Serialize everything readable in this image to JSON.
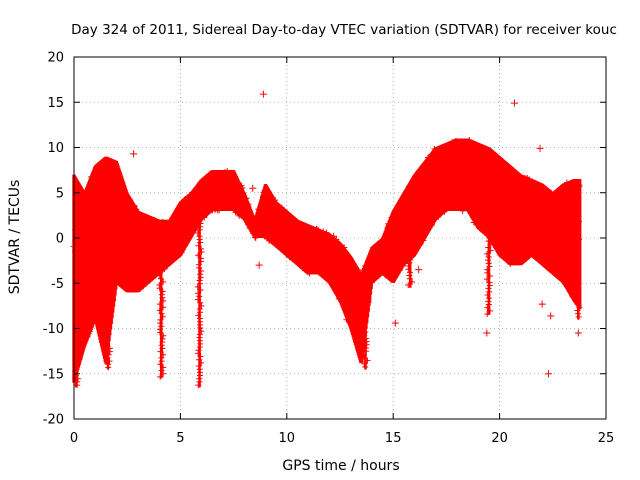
{
  "chart_data": {
    "type": "scatter",
    "title": "Day 324 of 2011, Sidereal Day-to-day VTEC variation (SDTVAR) for receiver kouc",
    "xlabel": "GPS time / hours",
    "ylabel": "SDTVAR / TECUs",
    "xlim": [
      0,
      25
    ],
    "ylim": [
      -20,
      20
    ],
    "xticks": [
      0,
      5,
      10,
      15,
      20,
      25
    ],
    "yticks": [
      -20,
      -15,
      -10,
      -5,
      0,
      5,
      10,
      15,
      20
    ],
    "xtick_labels": [
      "0",
      "5",
      "10",
      "15",
      "20",
      "25"
    ],
    "ytick_labels": [
      "-20",
      "-15",
      "-10",
      "-5",
      "0",
      "5",
      "10",
      "15",
      "20"
    ],
    "grid": true,
    "marker": "+",
    "series": [
      {
        "name": "SDTVAR",
        "color": "#ff0000",
        "envelope": {
          "x": [
            0.0,
            0.5,
            1.0,
            1.5,
            2.0,
            2.5,
            3.0,
            3.5,
            4.0,
            4.5,
            5.0,
            5.5,
            6.0,
            6.5,
            7.0,
            7.5,
            8.0,
            8.5,
            9.0,
            9.5,
            10.0,
            10.5,
            11.0,
            11.5,
            12.0,
            12.5,
            13.0,
            13.5,
            14.0,
            14.5,
            15.0,
            15.5,
            16.0,
            16.5,
            17.0,
            17.5,
            18.0,
            18.5,
            19.0,
            19.5,
            20.0,
            20.5,
            21.0,
            21.5,
            22.0,
            22.5,
            23.0,
            23.5,
            23.8
          ],
          "upper": [
            7,
            5,
            8,
            9,
            8.5,
            5,
            3,
            2.5,
            2,
            2,
            4,
            5,
            6.5,
            7.5,
            7.5,
            7.5,
            5,
            2,
            6,
            4,
            3,
            2,
            1.5,
            1,
            0.5,
            -0.5,
            -2,
            -4,
            -1,
            0,
            3,
            5,
            7,
            8.5,
            10,
            10.5,
            11,
            11,
            10.5,
            10,
            9,
            8,
            7,
            6.5,
            6,
            5,
            6,
            6.5,
            6.5
          ],
          "lower": [
            -16,
            -12,
            -9,
            -14,
            -5,
            -6,
            -6,
            -5,
            -4,
            -3,
            -2,
            0,
            2,
            3,
            3,
            3,
            2,
            0,
            0,
            -1,
            -2,
            -3,
            -4,
            -4,
            -5,
            -7,
            -10,
            -14,
            -5,
            -4,
            -5,
            -3,
            -2,
            0,
            2,
            3,
            3,
            3,
            1,
            0,
            -2,
            -3,
            -3,
            -2,
            -3,
            -4,
            -5,
            -7,
            -8
          ]
        },
        "dips": [
          {
            "x": 0.1,
            "y": -16.5
          },
          {
            "x": 1.6,
            "y": -14.5
          },
          {
            "x": 4.1,
            "y": -15.5
          },
          {
            "x": 5.9,
            "y": -16.5
          },
          {
            "x": 13.7,
            "y": -14.5
          },
          {
            "x": 15.8,
            "y": -5.5
          },
          {
            "x": 19.5,
            "y": -8.5
          },
          {
            "x": 23.7,
            "y": -9
          }
        ],
        "outliers": [
          {
            "x": 2.8,
            "y": 9.3
          },
          {
            "x": 8.9,
            "y": 15.9
          },
          {
            "x": 8.7,
            "y": -3
          },
          {
            "x": 8.4,
            "y": 5.5
          },
          {
            "x": 20.7,
            "y": 14.9
          },
          {
            "x": 21.9,
            "y": 9.9
          },
          {
            "x": 22.3,
            "y": -15
          },
          {
            "x": 22.4,
            "y": -8.6
          },
          {
            "x": 22.0,
            "y": -7.3
          },
          {
            "x": 19.4,
            "y": -10.5
          },
          {
            "x": 16.2,
            "y": -3.5
          },
          {
            "x": 15.1,
            "y": -9.4
          },
          {
            "x": 18.9,
            "y": 10.1
          },
          {
            "x": 23.7,
            "y": -10.5
          },
          {
            "x": 12.2,
            "y": 0.2
          }
        ]
      }
    ]
  }
}
